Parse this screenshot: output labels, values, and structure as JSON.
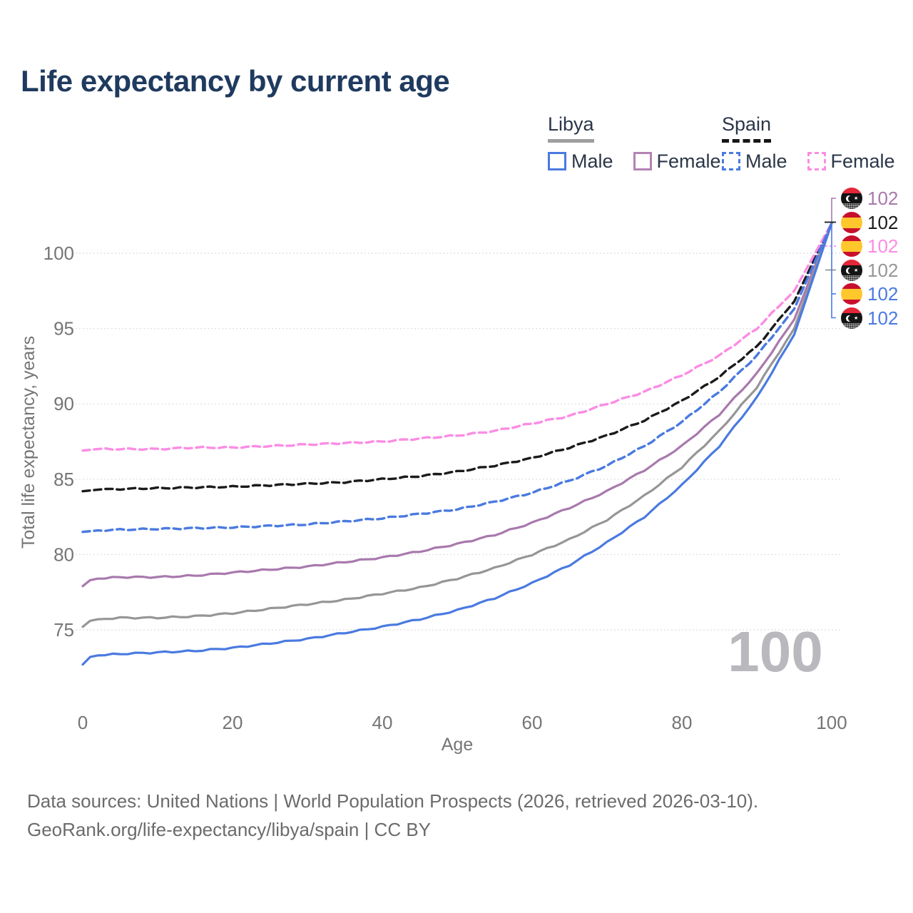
{
  "title": "Life expectancy by current age",
  "legend": {
    "groups": [
      {
        "name": "Libya",
        "line_style": "solid",
        "items": [
          {
            "label": "Male",
            "color": "#4a7ae0"
          },
          {
            "label": "Female",
            "color": "#b283b3"
          }
        ]
      },
      {
        "name": "Spain",
        "line_style": "dashed",
        "items": [
          {
            "label": "Male",
            "color": "#4a7ae0"
          },
          {
            "label": "Female",
            "color": "#fb8ce4"
          }
        ]
      }
    ]
  },
  "age_marker": "100",
  "footer": {
    "line1": "Data sources: United Nations | World Population Prospects (2026, retrieved 2026-03-10).",
    "line2": "GeoRank.org/life-expectancy/libya/spain | CC BY"
  },
  "chart_data": {
    "type": "line",
    "title": "Life expectancy by current age",
    "xlabel": "Age",
    "ylabel": "Total life expectancy, years",
    "xlim": [
      0,
      100
    ],
    "ylim": [
      72,
      103
    ],
    "x_ticks": [
      0,
      20,
      40,
      60,
      80,
      100
    ],
    "y_ticks": [
      75,
      80,
      85,
      90,
      95,
      100
    ],
    "grid": "horizontal-only",
    "legend_position": "top-right",
    "x": [
      0,
      1,
      2,
      5,
      10,
      15,
      20,
      25,
      30,
      35,
      40,
      45,
      50,
      55,
      60,
      65,
      70,
      75,
      80,
      85,
      90,
      95,
      100
    ],
    "series": [
      {
        "name": "Libya Female",
        "country": "Libya",
        "sex": "female",
        "style": "solid",
        "color": "#a879ad",
        "end_label": "102",
        "values": [
          77.9,
          78.3,
          78.4,
          78.5,
          78.5,
          78.6,
          78.8,
          79.0,
          79.2,
          79.5,
          79.8,
          80.2,
          80.7,
          81.3,
          82.1,
          83.1,
          84.2,
          85.6,
          87.2,
          89.3,
          92.0,
          95.6,
          102
        ]
      },
      {
        "name": "Spain (both sexes)",
        "country": "Spain",
        "sex": "total",
        "style": "dashed",
        "color": "#1b1b1b",
        "end_label": "102",
        "values": [
          84.2,
          84.25,
          84.3,
          84.35,
          84.4,
          84.45,
          84.5,
          84.6,
          84.7,
          84.8,
          85.0,
          85.2,
          85.5,
          85.9,
          86.4,
          87.1,
          87.9,
          88.9,
          90.2,
          91.8,
          93.8,
          96.8,
          102
        ]
      },
      {
        "name": "Spain Female",
        "country": "Spain",
        "sex": "female",
        "style": "dashed",
        "color": "#fb8ce4",
        "end_label": "102",
        "values": [
          86.9,
          86.95,
          87.0,
          87.0,
          87.0,
          87.1,
          87.1,
          87.2,
          87.3,
          87.4,
          87.5,
          87.7,
          87.9,
          88.2,
          88.7,
          89.2,
          90.0,
          90.8,
          91.9,
          93.2,
          95.0,
          97.5,
          102
        ]
      },
      {
        "name": "Libya (both sexes)",
        "country": "Libya",
        "sex": "total",
        "style": "solid",
        "color": "#969696",
        "end_label": "102",
        "values": [
          75.2,
          75.6,
          75.7,
          75.8,
          75.8,
          75.9,
          76.1,
          76.4,
          76.7,
          77.0,
          77.4,
          77.8,
          78.4,
          79.1,
          80.0,
          81.0,
          82.3,
          83.9,
          85.8,
          88.2,
          91.1,
          95.0,
          102
        ]
      },
      {
        "name": "Spain Male",
        "country": "Spain",
        "sex": "male",
        "style": "dashed",
        "color": "#4a7ae0",
        "end_label": "102",
        "values": [
          81.5,
          81.55,
          81.6,
          81.65,
          81.7,
          81.75,
          81.8,
          81.9,
          82.0,
          82.2,
          82.4,
          82.7,
          83.0,
          83.5,
          84.1,
          84.9,
          85.9,
          87.2,
          88.8,
          90.8,
          93.2,
          96.3,
          102
        ]
      },
      {
        "name": "Libya Male",
        "country": "Libya",
        "sex": "male",
        "style": "solid",
        "color": "#4a7ae0",
        "end_label": "102",
        "values": [
          72.7,
          73.2,
          73.3,
          73.4,
          73.5,
          73.6,
          73.8,
          74.1,
          74.4,
          74.8,
          75.2,
          75.7,
          76.3,
          77.1,
          78.1,
          79.3,
          80.8,
          82.5,
          84.6,
          87.2,
          90.4,
          94.6,
          102
        ]
      }
    ]
  }
}
